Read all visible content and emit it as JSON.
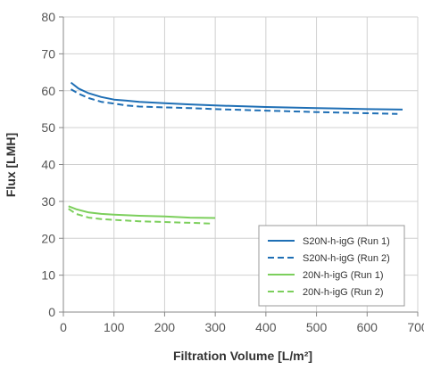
{
  "chart_data": {
    "type": "line",
    "title": "",
    "xlabel": "Filtration Volume [L/m²]",
    "ylabel": "Flux [LMH]",
    "xlim": [
      0,
      700
    ],
    "ylim": [
      0,
      80
    ],
    "x_ticks": [
      0,
      100,
      200,
      300,
      400,
      500,
      600,
      700
    ],
    "y_ticks": [
      0,
      10,
      20,
      30,
      40,
      50,
      60,
      70,
      80
    ],
    "x_tick_labels": [
      "0",
      "100",
      "200",
      "300",
      "400",
      "500",
      "600",
      "700"
    ],
    "y_tick_labels": [
      "0",
      "10",
      "20",
      "30",
      "40",
      "50",
      "60",
      "70",
      "80"
    ],
    "grid": true,
    "legend_position": "bottom-right",
    "series": [
      {
        "name": "S20N-h-igG (Run 1)",
        "color": "#1f6fb5",
        "dash": "solid",
        "points": [
          [
            15,
            62.2
          ],
          [
            30,
            60.6
          ],
          [
            50,
            59.3
          ],
          [
            75,
            58.3
          ],
          [
            100,
            57.6
          ],
          [
            125,
            57.3
          ],
          [
            150,
            57.0
          ],
          [
            200,
            56.6
          ],
          [
            250,
            56.3
          ],
          [
            300,
            56.0
          ],
          [
            400,
            55.6
          ],
          [
            500,
            55.3
          ],
          [
            600,
            55.0
          ],
          [
            670,
            54.9
          ]
        ]
      },
      {
        "name": "S20N-h-igG (Run 2)",
        "color": "#1f6fb5",
        "dash": "dashed",
        "points": [
          [
            15,
            60.4
          ],
          [
            30,
            59.2
          ],
          [
            50,
            58.0
          ],
          [
            75,
            57.0
          ],
          [
            100,
            56.5
          ],
          [
            125,
            56.0
          ],
          [
            150,
            55.7
          ],
          [
            200,
            55.5
          ],
          [
            250,
            55.3
          ],
          [
            300,
            55.0
          ],
          [
            400,
            54.6
          ],
          [
            500,
            54.2
          ],
          [
            600,
            53.9
          ],
          [
            660,
            53.7
          ]
        ]
      },
      {
        "name": "20N-h-igG (Run 1)",
        "color": "#7ccf5c",
        "dash": "solid",
        "points": [
          [
            10,
            28.7
          ],
          [
            25,
            27.9
          ],
          [
            50,
            27.0
          ],
          [
            75,
            26.6
          ],
          [
            100,
            26.4
          ],
          [
            150,
            26.1
          ],
          [
            200,
            25.9
          ],
          [
            250,
            25.6
          ],
          [
            300,
            25.5
          ]
        ]
      },
      {
        "name": "20N-h-igG (Run 2)",
        "color": "#7ccf5c",
        "dash": "dashed",
        "points": [
          [
            10,
            28.0
          ],
          [
            25,
            26.6
          ],
          [
            50,
            25.6
          ],
          [
            75,
            25.2
          ],
          [
            100,
            25.0
          ],
          [
            150,
            24.6
          ],
          [
            200,
            24.4
          ],
          [
            250,
            24.2
          ],
          [
            290,
            24.0
          ]
        ]
      }
    ]
  }
}
